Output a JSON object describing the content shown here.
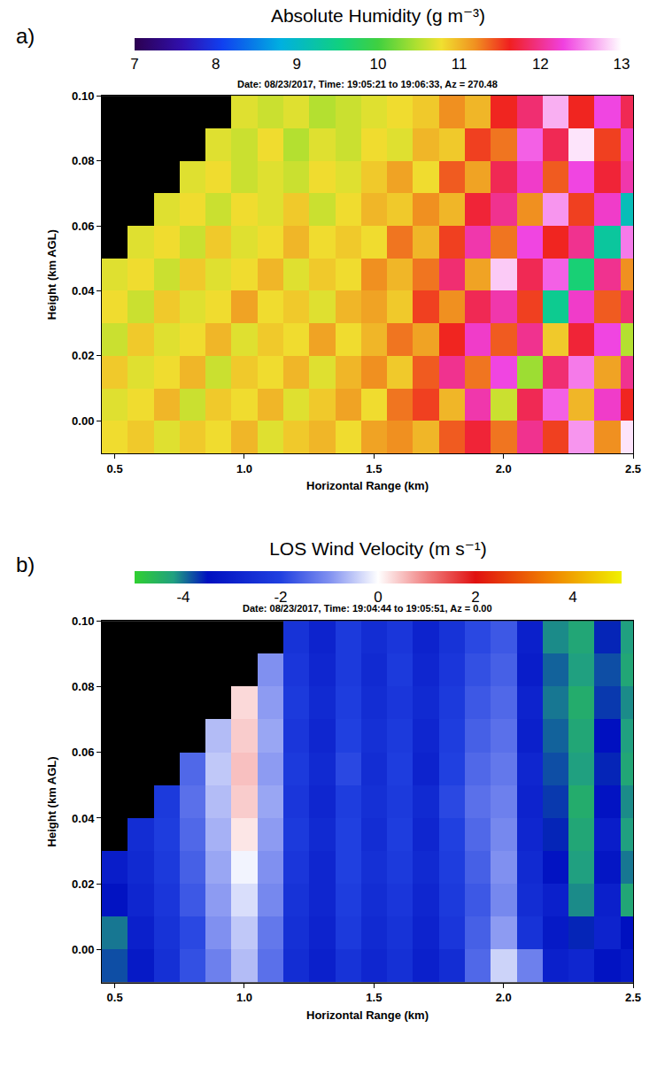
{
  "chart_data": [
    {
      "type": "heatmap",
      "panel": "a)",
      "title": "Date: 08/23/2017, Time: 19:05:21 to 19:06:33, Az = 270.48",
      "x_label": "Horizontal Range (km)",
      "y_label": "Height (km AGL)",
      "x": [
        0.5,
        0.6,
        0.7,
        0.8,
        0.9,
        1.0,
        1.1,
        1.2,
        1.3,
        1.4,
        1.5,
        1.6,
        1.7,
        1.8,
        1.9,
        2.0,
        2.1,
        2.2,
        2.3,
        2.4,
        2.5
      ],
      "y": [
        -0.005,
        0.005,
        0.015,
        0.025,
        0.035,
        0.045,
        0.055,
        0.065,
        0.075,
        0.085,
        0.095
      ],
      "z": [
        [
          10.8,
          10.9,
          10.7,
          10.9,
          10.8,
          11.0,
          10.7,
          10.9,
          11.0,
          10.8,
          11.1,
          11.2,
          11.0,
          11.4,
          11.7,
          11.3,
          12.0,
          11.5,
          12.6,
          11.2,
          12.9
        ],
        [
          10.7,
          10.8,
          11.0,
          10.6,
          10.9,
          10.8,
          11.0,
          10.7,
          10.9,
          11.1,
          10.8,
          11.3,
          11.5,
          11.0,
          12.1,
          10.6,
          11.8,
          12.4,
          11.0,
          12.2,
          11.6
        ],
        [
          10.9,
          10.7,
          10.8,
          11.0,
          10.6,
          10.9,
          10.8,
          11.0,
          10.7,
          11.0,
          11.2,
          10.9,
          11.4,
          12.0,
          11.3,
          12.3,
          10.4,
          11.9,
          12.5,
          11.1,
          12.0
        ],
        [
          10.6,
          10.9,
          10.7,
          10.8,
          11.0,
          10.7,
          10.9,
          10.8,
          11.1,
          10.8,
          11.0,
          11.3,
          11.1,
          11.6,
          12.2,
          11.4,
          12.0,
          10.9,
          11.7,
          12.3,
          10.5
        ],
        [
          10.8,
          10.6,
          10.9,
          10.7,
          10.8,
          11.1,
          10.8,
          10.9,
          10.7,
          11.0,
          11.1,
          10.9,
          11.5,
          11.2,
          11.8,
          12.1,
          11.5,
          9.4,
          12.2,
          11.4,
          11.9
        ],
        [
          10.7,
          10.8,
          10.6,
          10.9,
          10.7,
          10.8,
          11.0,
          10.7,
          10.9,
          10.8,
          11.2,
          11.0,
          11.3,
          11.9,
          11.1,
          12.8,
          11.8,
          12.4,
          9.6,
          12.0,
          11.2
        ],
        [
          null,
          10.7,
          10.8,
          10.6,
          10.9,
          10.7,
          10.8,
          11.0,
          10.8,
          10.9,
          10.8,
          11.3,
          11.0,
          11.5,
          12.1,
          11.3,
          12.3,
          11.6,
          12.0,
          9.3,
          12.5
        ],
        [
          null,
          null,
          10.7,
          10.8,
          10.6,
          10.8,
          10.7,
          10.9,
          10.6,
          10.8,
          11.0,
          10.9,
          11.2,
          11.0,
          11.7,
          12.0,
          11.2,
          12.6,
          11.5,
          12.2,
          9.1
        ],
        [
          null,
          null,
          null,
          10.7,
          10.8,
          10.6,
          10.7,
          10.6,
          10.8,
          10.7,
          10.9,
          11.1,
          10.8,
          11.4,
          11.1,
          11.8,
          12.2,
          11.4,
          12.3,
          11.7,
          12.1
        ],
        [
          null,
          null,
          null,
          null,
          10.7,
          10.6,
          10.8,
          10.5,
          10.7,
          10.6,
          10.8,
          10.7,
          11.0,
          10.9,
          11.5,
          11.3,
          12.4,
          11.8,
          12.9,
          11.5,
          12.2
        ],
        [
          null,
          null,
          null,
          null,
          null,
          10.7,
          10.6,
          10.7,
          10.5,
          10.6,
          10.7,
          10.8,
          10.9,
          11.2,
          11.0,
          11.6,
          11.9,
          12.7,
          11.6,
          12.3,
          11.8
        ]
      ],
      "xlim": [
        0.45,
        2.5
      ],
      "xticks": [
        0.5,
        {
          "value": 1.0,
          "label": "1.0"
        },
        1.5,
        {
          "value": 2.0,
          "label": "2.0"
        },
        2.5
      ],
      "ylim": [
        -0.01,
        0.1
      ],
      "yticks": [
        {
          "value": 0,
          "label": "0.00"
        },
        {
          "value": 0.02,
          "label": "0.02"
        },
        {
          "value": 0.04,
          "label": "0.04"
        },
        {
          "value": 0.06,
          "label": "0.06"
        },
        {
          "value": 0.08,
          "label": "0.08"
        },
        {
          "value": 0.1,
          "label": "0.10"
        }
      ],
      "colorbar": {
        "title": "Absolute Humidity (g m⁻³)",
        "range": [
          7,
          13
        ],
        "ticks": [
          7,
          8,
          9,
          10,
          11,
          12,
          13
        ]
      }
    },
    {
      "type": "heatmap",
      "panel": "b)",
      "title": "Date: 08/23/2017, Time: 19:04:44 to 19:05:51, Az = 0.00",
      "x_label": "Horizontal Range (km)",
      "y_label": "Height (km AGL)",
      "x": [
        0.5,
        0.6,
        0.7,
        0.8,
        0.9,
        1.0,
        1.1,
        1.2,
        1.3,
        1.4,
        1.5,
        1.6,
        1.7,
        1.8,
        1.9,
        2.0,
        2.1,
        2.2,
        2.3,
        2.4,
        2.5
      ],
      "y": [
        -0.005,
        0.005,
        0.015,
        0.025,
        0.035,
        0.045,
        0.055,
        0.065,
        0.075,
        0.085,
        0.095
      ],
      "z": [
        [
          -3.8,
          -3.2,
          -2.5,
          -1.8,
          -1.2,
          -0.6,
          -1.4,
          -2.6,
          -3.0,
          -2.4,
          -2.8,
          -2.5,
          -3.0,
          -2.6,
          -1.5,
          -0.4,
          -1.2,
          -3.0,
          -2.8,
          -3.4,
          -3.2
        ],
        [
          -4.0,
          -3.0,
          -2.4,
          -1.9,
          -1.0,
          -0.5,
          -1.3,
          -2.5,
          -2.9,
          -2.2,
          -2.7,
          -2.4,
          -2.9,
          -2.3,
          -1.6,
          -0.9,
          -2.4,
          -3.2,
          -3.6,
          -2.9,
          -3.5
        ],
        [
          -3.4,
          -2.8,
          -2.3,
          -1.7,
          -0.9,
          -0.3,
          -1.1,
          -2.4,
          -2.8,
          -2.1,
          -2.6,
          -2.3,
          -2.8,
          -2.2,
          -1.7,
          -1.1,
          -2.6,
          -3.0,
          -4.1,
          -3.0,
          -4.3
        ],
        [
          -3.1,
          -2.7,
          -2.2,
          -1.6,
          -0.8,
          -0.1,
          -1.0,
          -2.3,
          -2.8,
          -2.0,
          -2.5,
          -2.2,
          -2.7,
          -2.1,
          -1.6,
          -1.0,
          -2.7,
          -3.4,
          -4.2,
          -3.3,
          -4.0
        ],
        [
          null,
          -2.6,
          -2.1,
          -1.5,
          -0.7,
          0.2,
          -0.9,
          -2.2,
          -2.7,
          -2.0,
          -2.6,
          -2.1,
          -2.8,
          -2.0,
          -1.5,
          -1.1,
          -2.8,
          -3.6,
          -4.3,
          -3.1,
          -4.2
        ],
        [
          null,
          null,
          -2.2,
          -1.4,
          -0.6,
          0.4,
          -0.8,
          -2.3,
          -2.8,
          -2.1,
          -2.5,
          -2.2,
          -2.7,
          -1.9,
          -1.4,
          -1.2,
          -2.9,
          -3.7,
          -4.4,
          -3.4,
          -4.1
        ],
        [
          null,
          null,
          null,
          -1.5,
          -0.5,
          0.5,
          -0.9,
          -2.2,
          -2.7,
          -1.9,
          -2.6,
          -2.1,
          -2.9,
          -2.0,
          -1.5,
          -1.3,
          -2.8,
          -3.8,
          -4.2,
          -3.6,
          -4.3
        ],
        [
          null,
          null,
          null,
          null,
          -0.6,
          0.4,
          -0.8,
          -2.3,
          -2.8,
          -2.0,
          -2.5,
          -2.2,
          -2.8,
          -2.1,
          -1.6,
          -1.4,
          -3.0,
          -3.9,
          -4.3,
          -3.5,
          -4.2
        ],
        [
          null,
          null,
          null,
          null,
          null,
          0.3,
          -0.9,
          -2.2,
          -2.7,
          -2.1,
          -2.6,
          -2.3,
          -2.7,
          -2.2,
          -1.7,
          -1.5,
          -2.9,
          -4.0,
          -4.4,
          -3.7,
          -4.1
        ],
        [
          null,
          null,
          null,
          null,
          null,
          null,
          -1.0,
          -2.3,
          -2.8,
          -2.2,
          -2.7,
          -2.2,
          -2.8,
          -2.3,
          -1.8,
          -1.6,
          -3.1,
          -3.9,
          -4.2,
          -3.8,
          -4.3
        ],
        [
          null,
          null,
          null,
          null,
          null,
          null,
          null,
          -2.4,
          -2.9,
          -2.2,
          -2.6,
          -2.3,
          -2.9,
          -2.4,
          -1.9,
          -1.7,
          -3.0,
          -4.1,
          -4.3,
          -3.6,
          -4.2
        ]
      ],
      "xlim": [
        0.45,
        2.5
      ],
      "xticks": [
        0.5,
        {
          "value": 1.0,
          "label": "1.0"
        },
        1.5,
        {
          "value": 2.0,
          "label": "2.0"
        },
        2.5
      ],
      "ylim": [
        -0.01,
        0.1
      ],
      "yticks": [
        {
          "value": 0,
          "label": "0.00"
        },
        {
          "value": 0.02,
          "label": "0.02"
        },
        {
          "value": 0.04,
          "label": "0.04"
        },
        {
          "value": 0.06,
          "label": "0.06"
        },
        {
          "value": 0.08,
          "label": "0.08"
        },
        {
          "value": 0.1,
          "label": "0.10"
        }
      ],
      "colorbar": {
        "title": "LOS Wind Velocity (m s⁻¹)",
        "range": [
          -5,
          5
        ],
        "ticks": [
          -4,
          -2,
          0,
          2,
          4
        ]
      }
    }
  ]
}
